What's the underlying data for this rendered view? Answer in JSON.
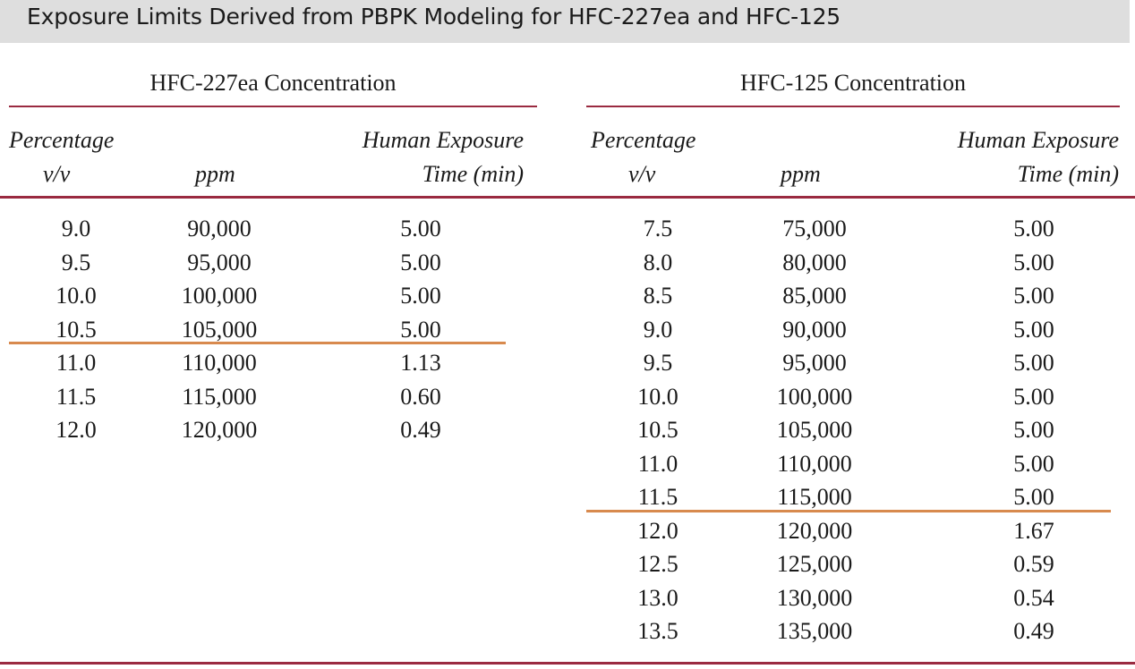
{
  "title": "Exposure Limits Derived from PBPK Modeling for HFC-227ea and HFC-125",
  "groups": [
    {
      "name": "HFC-227ea Concentration",
      "headers": {
        "percentage": "Percentage",
        "percentage_unit": "v/v",
        "ppm": "ppm",
        "time": "Human Exposure",
        "time_unit": "Time (min)"
      },
      "rows": [
        [
          "9.0",
          "90,000",
          "5.00"
        ],
        [
          "9.5",
          "95,000",
          "5.00"
        ],
        [
          "10.0",
          "100,000",
          "5.00"
        ],
        [
          "10.5",
          "105,000",
          "5.00"
        ],
        [
          "11.0",
          "110,000",
          "1.13"
        ],
        [
          "11.5",
          "115,000",
          "0.60"
        ],
        [
          "12.0",
          "120,000",
          "0.49"
        ]
      ],
      "threshold_after_row": 4
    },
    {
      "name": "HFC-125 Concentration",
      "headers": {
        "percentage": "Percentage",
        "percentage_unit": "v/v",
        "ppm": "ppm",
        "time": "Human Exposure",
        "time_unit": "Time (min)"
      },
      "rows": [
        [
          "7.5",
          "75,000",
          "5.00"
        ],
        [
          "8.0",
          "80,000",
          "5.00"
        ],
        [
          "8.5",
          "85,000",
          "5.00"
        ],
        [
          "9.0",
          "90,000",
          "5.00"
        ],
        [
          "9.5",
          "95,000",
          "5.00"
        ],
        [
          "10.0",
          "100,000",
          "5.00"
        ],
        [
          "10.5",
          "105,000",
          "5.00"
        ],
        [
          "11.0",
          "110,000",
          "5.00"
        ],
        [
          "11.5",
          "115,000",
          "5.00"
        ],
        [
          "12.0",
          "120,000",
          "1.67"
        ],
        [
          "12.5",
          "125,000",
          "0.59"
        ],
        [
          "13.0",
          "130,000",
          "0.54"
        ],
        [
          "13.5",
          "135,000",
          "0.49"
        ]
      ],
      "threshold_after_row": 9
    }
  ],
  "colors": {
    "rule": "#9a2a40",
    "threshold_line": "#d88a4e",
    "title_band": "#dedede"
  }
}
